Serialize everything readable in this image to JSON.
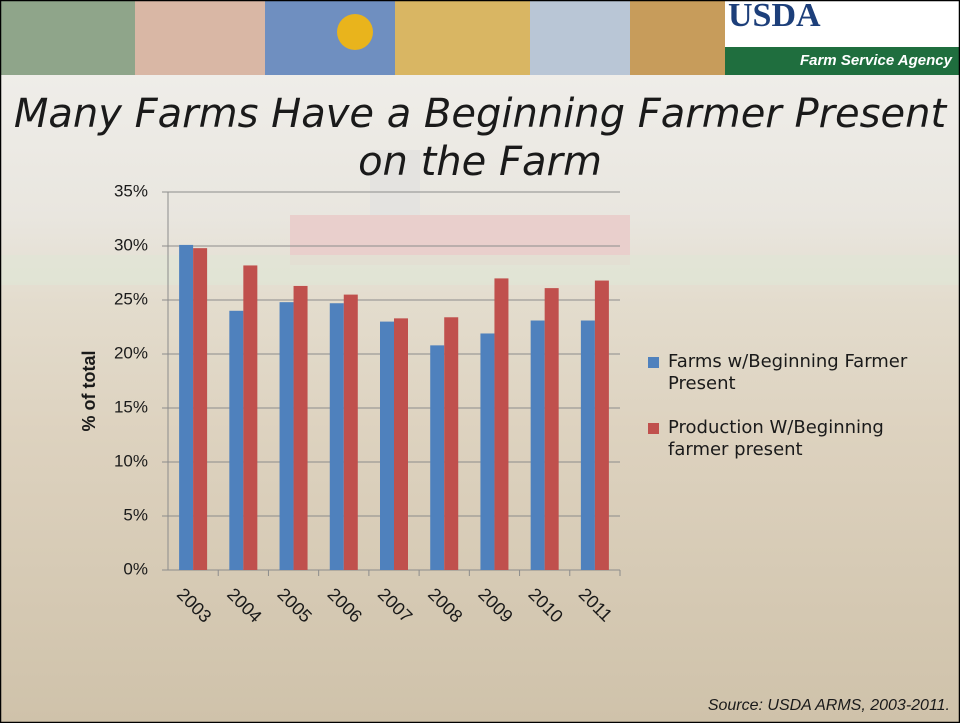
{
  "header": {
    "logo": "USDA",
    "agency": "Farm Service Agency"
  },
  "chart_data": {
    "type": "bar",
    "title": "Many Farms Have a Beginning Farmer Present on the Farm",
    "y_label": "% of total",
    "source": "Source: USDA ARMS, 2003-2011.",
    "categories": [
      "2003",
      "2004",
      "2005",
      "2006",
      "2007",
      "2008",
      "2009",
      "2010",
      "2011"
    ],
    "series": [
      {
        "name": "Farms w/Beginning Farmer Present",
        "color": "#4f81bd",
        "values": [
          30.1,
          24.0,
          24.8,
          24.7,
          23.0,
          20.8,
          21.9,
          23.1,
          23.1
        ]
      },
      {
        "name": "Production W/Beginning farmer present",
        "color": "#c0504d",
        "values": [
          29.8,
          28.2,
          26.3,
          25.5,
          23.3,
          23.4,
          27.0,
          26.1,
          26.8
        ]
      }
    ],
    "ylim": [
      0,
      35
    ],
    "yticks": [
      {
        "value": 0,
        "label": "0%"
      },
      {
        "value": 5,
        "label": "5%"
      },
      {
        "value": 10,
        "label": "10%"
      },
      {
        "value": 15,
        "label": "15%"
      },
      {
        "value": 20,
        "label": "20%"
      },
      {
        "value": 25,
        "label": "25%"
      },
      {
        "value": 30,
        "label": "30%"
      },
      {
        "value": 35,
        "label": "35%"
      }
    ],
    "grid": true,
    "legend": "right"
  }
}
